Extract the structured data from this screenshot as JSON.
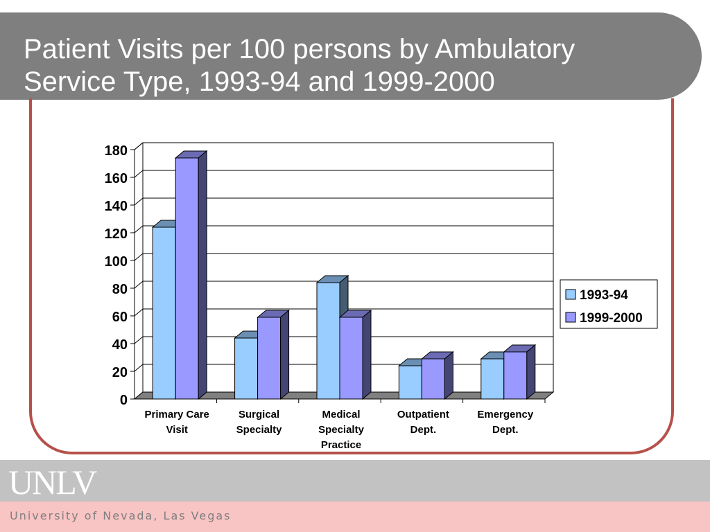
{
  "slide": {
    "title_line1": "Patient Visits per 100 persons by Ambulatory",
    "title_line2": "Service Type, 1993-94 and 1999-2000"
  },
  "footer": {
    "logo_text": "UNLV",
    "university_name": "University of Nevada, Las Vegas"
  },
  "colors": {
    "title_bar": "#7f7f7f",
    "frame": "#b5514a",
    "series_1993": "#99ccff",
    "series_1999": "#9999ff",
    "footer_gray": "#c2c2c2",
    "footer_pink": "#f9c4c4"
  },
  "chart_data": {
    "type": "bar",
    "style": "3d-clustered-column",
    "categories": [
      [
        "Primary Care",
        "Visit"
      ],
      [
        "Surgical",
        "Specialty"
      ],
      [
        "Medical",
        "Specialty",
        "Practice"
      ],
      [
        "Outpatient",
        "Dept."
      ],
      [
        "Emergency",
        "Dept."
      ]
    ],
    "series": [
      {
        "name": "1993-94",
        "values": [
          124,
          44,
          84,
          24,
          29
        ],
        "color": "#99ccff"
      },
      {
        "name": "1999-2000",
        "values": [
          174,
          59,
          59,
          29,
          34
        ],
        "color": "#9999ff"
      }
    ],
    "ylim": [
      0,
      180
    ],
    "yticks": [
      0,
      20,
      40,
      60,
      80,
      100,
      120,
      140,
      160,
      180
    ],
    "grid": true,
    "legend_position": "right"
  }
}
